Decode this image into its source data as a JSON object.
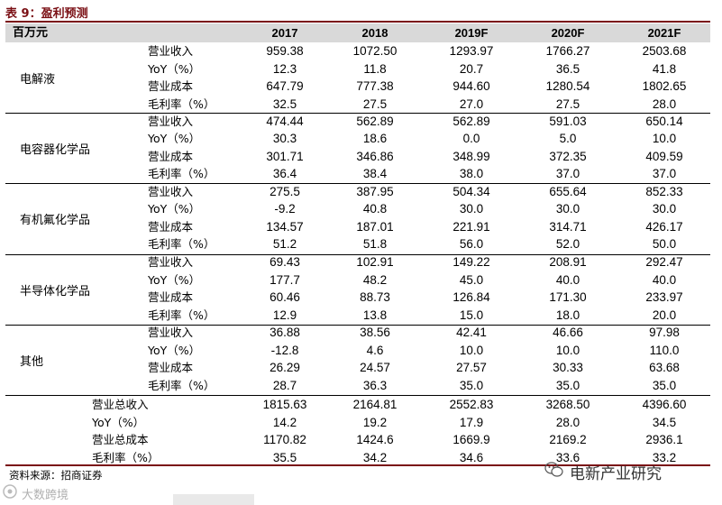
{
  "title": "表 9：盈利预测",
  "header": {
    "unit": "百万元",
    "years": [
      "2017",
      "2018",
      "2019F",
      "2020F",
      "2021F"
    ]
  },
  "metrics": [
    "营业收入",
    "YoY（%）",
    "营业成本",
    "毛利率（%）"
  ],
  "groups": [
    {
      "name": "电解液",
      "rows": [
        [
          "959.38",
          "1072.50",
          "1293.97",
          "1766.27",
          "2503.68"
        ],
        [
          "12.3",
          "11.8",
          "20.7",
          "36.5",
          "41.8"
        ],
        [
          "647.79",
          "777.38",
          "944.60",
          "1280.54",
          "1802.65"
        ],
        [
          "32.5",
          "27.5",
          "27.0",
          "27.5",
          "28.0"
        ]
      ]
    },
    {
      "name": "电容器化学品",
      "rows": [
        [
          "474.44",
          "562.89",
          "562.89",
          "591.03",
          "650.14"
        ],
        [
          "30.3",
          "18.6",
          "0.0",
          "5.0",
          "10.0"
        ],
        [
          "301.71",
          "346.86",
          "348.99",
          "372.35",
          "409.59"
        ],
        [
          "36.4",
          "38.4",
          "38.0",
          "37.0",
          "37.0"
        ]
      ]
    },
    {
      "name": "有机氟化学品",
      "rows": [
        [
          "275.5",
          "387.95",
          "504.34",
          "655.64",
          "852.33"
        ],
        [
          "-9.2",
          "40.8",
          "30.0",
          "30.0",
          "30.0"
        ],
        [
          "134.57",
          "187.01",
          "221.91",
          "314.71",
          "426.17"
        ],
        [
          "51.2",
          "51.8",
          "56.0",
          "52.0",
          "50.0"
        ]
      ]
    },
    {
      "name": "半导体化学品",
      "rows": [
        [
          "69.43",
          "102.91",
          "149.22",
          "208.91",
          "292.47"
        ],
        [
          "177.7",
          "48.2",
          "45.0",
          "40.0",
          "40.0"
        ],
        [
          "60.46",
          "88.73",
          "126.84",
          "171.30",
          "233.97"
        ],
        [
          "12.9",
          "13.8",
          "15.0",
          "18.0",
          "20.0"
        ]
      ]
    },
    {
      "name": "其他",
      "rows": [
        [
          "36.88",
          "38.56",
          "42.41",
          "46.66",
          "97.98"
        ],
        [
          "-12.8",
          "4.6",
          "10.0",
          "10.0",
          "110.0"
        ],
        [
          "26.29",
          "24.57",
          "27.57",
          "30.33",
          "63.68"
        ],
        [
          "28.7",
          "36.3",
          "35.0",
          "35.0",
          "35.0"
        ]
      ]
    }
  ],
  "total": {
    "metrics": [
      "营业总收入",
      "YoY（%）",
      "营业总成本",
      "毛利率（%）"
    ],
    "rows": [
      [
        "1815.63",
        "2164.81",
        "2552.83",
        "3268.50",
        "4396.60"
      ],
      [
        "14.2",
        "19.2",
        "17.9",
        "28.0",
        "34.5"
      ],
      [
        "1170.82",
        "1424.6",
        "1669.9",
        "2169.2",
        "2936.1"
      ],
      [
        "35.5",
        "34.2",
        "34.6",
        "33.6",
        "33.2"
      ]
    ]
  },
  "source": "资料来源：招商证券",
  "watermark_right": "电新产业研究",
  "watermark_left": "大数跨境",
  "colors": {
    "title": "#7a0f14",
    "header_bg": "#d9d9d9"
  }
}
